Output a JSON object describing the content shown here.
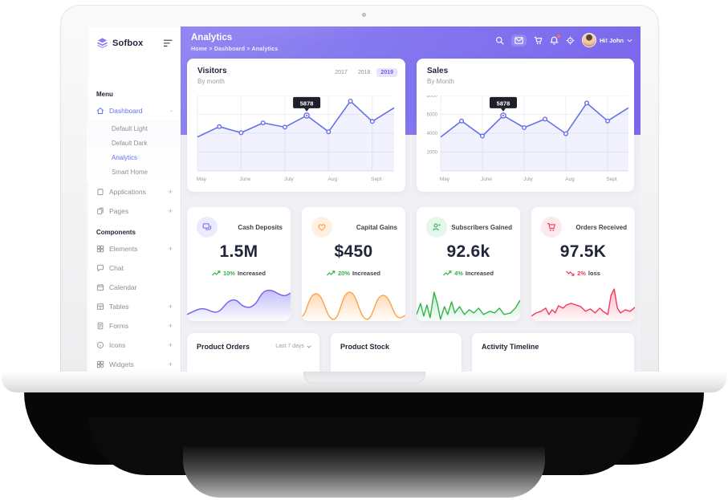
{
  "sidebar": {
    "logo_text": "Sofbox",
    "menu_label": "Menu",
    "components_label": "Components",
    "items_top": [
      {
        "label": "Dashboard",
        "suffix": "-"
      },
      {
        "label": "Applications",
        "suffix": "+"
      },
      {
        "label": "Pages",
        "suffix": "+"
      }
    ],
    "dashboard_submenu": [
      {
        "label": "Default Light"
      },
      {
        "label": "Default Dark"
      },
      {
        "label": "Analytics"
      },
      {
        "label": "Smart Home"
      }
    ],
    "items_components": [
      {
        "label": "Elements",
        "suffix": "+"
      },
      {
        "label": "Chat",
        "suffix": ""
      },
      {
        "label": "Calendar",
        "suffix": ""
      },
      {
        "label": "Tables",
        "suffix": "+"
      },
      {
        "label": "Forms",
        "suffix": "+"
      },
      {
        "label": "Icons",
        "suffix": "+"
      },
      {
        "label": "Widgets",
        "suffix": "+"
      }
    ]
  },
  "header": {
    "title": "Analytics",
    "breadcrumb": "Home > Dashboard > Analytics",
    "user_label": "Hi! John"
  },
  "chart_data": [
    {
      "type": "line",
      "title": "Visitors",
      "subtitle": "By month",
      "years": [
        "2017",
        "2018",
        "2019"
      ],
      "active_year": "2019",
      "x_labels": [
        "May",
        "June",
        "July",
        "Aug",
        "Sept"
      ],
      "values": [
        3600,
        4700,
        4050,
        5100,
        4650,
        5878,
        4150,
        7400,
        5250,
        6700
      ],
      "tooltip": {
        "index": 5,
        "label": "5878"
      },
      "ylim": [
        0,
        8000
      ],
      "grid_values": [
        2000,
        4000,
        6000,
        8000
      ],
      "show_y_labels": false,
      "line_color": "#6671e9",
      "legend": "none"
    },
    {
      "type": "line",
      "title": "Sales",
      "subtitle": "By Month",
      "x_labels": [
        "May",
        "June",
        "July",
        "Aug",
        "Sept"
      ],
      "y_tick_labels": [
        "2000",
        "4000",
        "6000",
        "8000"
      ],
      "values": [
        3600,
        5300,
        3700,
        5878,
        4600,
        5500,
        3950,
        7200,
        5300,
        6700
      ],
      "tooltip": {
        "index": 3,
        "label": "5878"
      },
      "ylim": [
        0,
        8000
      ],
      "grid_values": [
        2000,
        4000,
        6000,
        8000
      ],
      "show_y_labels": true,
      "line_color": "#6671e9",
      "legend": "none"
    }
  ],
  "stats": [
    {
      "title": "Cash Deposits",
      "value": "1.5M",
      "pct": "10%",
      "trend": "Increased",
      "dir": "up",
      "accent": "#7a6ff0"
    },
    {
      "title": "Capital Gains",
      "value": "$450",
      "pct": "20%",
      "trend": "Increased",
      "dir": "up",
      "accent": "#ff9f43"
    },
    {
      "title": "Subscribers Gained",
      "value": "92.6k",
      "pct": "4%",
      "trend": "Increased",
      "dir": "up",
      "accent": "#30b456"
    },
    {
      "title": "Orders Received",
      "value": "97.5K",
      "pct": "2%",
      "trend": "loss",
      "dir": "down",
      "accent": "#f5365c"
    }
  ],
  "bottom_cards": [
    {
      "title": "Product Orders",
      "filter": "Last 7 days"
    },
    {
      "title": "Product Stock"
    },
    {
      "title": "Activity Timeline"
    }
  ],
  "colors": {
    "primary_purple": "#7c6cee",
    "sidebar_active": "#6173f5",
    "chart_line": "#6671e9",
    "tooltip_bg": "#1e1e2d",
    "green": "#2fb344",
    "orange": "#ff9f43",
    "red": "#f5365c"
  }
}
